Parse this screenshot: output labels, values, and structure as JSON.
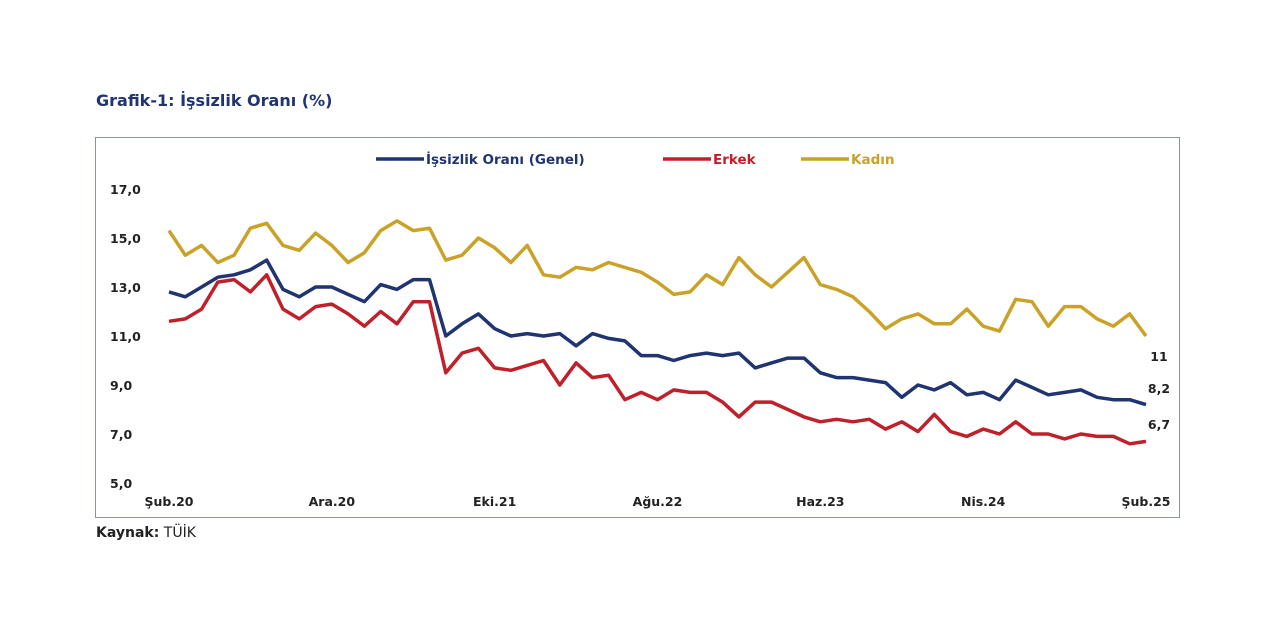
{
  "title": "Grafik-1: İşsizlik Oranı (%)",
  "source": {
    "label": "Kaynak:",
    "value": "TÜİK"
  },
  "chart_data": {
    "type": "line",
    "title": "Grafik-1: İşsizlik Oranı (%)",
    "xlabel": "",
    "ylabel": "",
    "ylim": [
      5.0,
      17.0
    ],
    "y_ticks": [
      "5,0",
      "7,0",
      "9,0",
      "11,0",
      "13,0",
      "15,0",
      "17,0"
    ],
    "y_tick_values": [
      5,
      7,
      9,
      11,
      13,
      15,
      17
    ],
    "x_tick_labels": [
      "Şub.20",
      "Ara.20",
      "Eki.21",
      "Ağu.22",
      "Haz.23",
      "Nis.24",
      "Şub.25"
    ],
    "x_tick_every_months": 10,
    "x_start": "Şub.20",
    "x_end": "Şub.25",
    "grid": false,
    "legend_position": "top",
    "series": [
      {
        "name": "İşsizlik Oranı (Genel)",
        "color": "#1F3470",
        "end_label": "8,2",
        "values": [
          12.8,
          12.6,
          13.0,
          13.4,
          13.5,
          13.7,
          14.1,
          12.9,
          12.6,
          13.0,
          13.0,
          12.7,
          12.4,
          13.1,
          12.9,
          13.3,
          13.3,
          11.0,
          11.5,
          11.9,
          11.3,
          11.0,
          11.1,
          11.0,
          11.1,
          10.6,
          11.1,
          10.9,
          10.8,
          10.2,
          10.2,
          10.0,
          10.2,
          10.3,
          10.2,
          10.3,
          9.7,
          9.9,
          10.1,
          10.1,
          9.5,
          9.3,
          9.3,
          9.2,
          9.1,
          8.5,
          9.0,
          8.8,
          9.1,
          8.6,
          8.7,
          8.4,
          9.2,
          8.9,
          8.6,
          8.7,
          8.8,
          8.5,
          8.4,
          8.4,
          8.2
        ]
      },
      {
        "name": "Erkek",
        "color": "#C0202A",
        "end_label": "6,7",
        "values": [
          11.6,
          11.7,
          12.1,
          13.2,
          13.3,
          12.8,
          13.5,
          12.1,
          11.7,
          12.2,
          12.3,
          11.9,
          11.4,
          12.0,
          11.5,
          12.4,
          12.4,
          9.5,
          10.3,
          10.5,
          9.7,
          9.6,
          9.8,
          10.0,
          9.0,
          9.9,
          9.3,
          9.4,
          8.4,
          8.7,
          8.4,
          8.8,
          8.7,
          8.7,
          8.3,
          7.7,
          8.3,
          8.3,
          8.0,
          7.7,
          7.5,
          7.6,
          7.5,
          7.6,
          7.2,
          7.5,
          7.1,
          7.8,
          7.1,
          6.9,
          7.2,
          7.0,
          7.5,
          7.0,
          7.0,
          6.8,
          7.0,
          6.9,
          6.9,
          6.6,
          6.7
        ]
      },
      {
        "name": "Kadın",
        "color": "#C9A227",
        "end_label": "11",
        "values": [
          15.3,
          14.3,
          14.7,
          14.0,
          14.3,
          15.4,
          15.6,
          14.7,
          14.5,
          15.2,
          14.7,
          14.0,
          14.4,
          15.3,
          15.7,
          15.3,
          15.4,
          14.1,
          14.3,
          15.0,
          14.6,
          14.0,
          14.7,
          13.5,
          13.4,
          13.8,
          13.7,
          14.0,
          13.8,
          13.6,
          13.2,
          12.7,
          12.8,
          13.5,
          13.1,
          14.2,
          13.5,
          13.0,
          13.6,
          14.2,
          13.1,
          12.9,
          12.6,
          12.0,
          11.3,
          11.7,
          11.9,
          11.5,
          11.5,
          12.1,
          11.4,
          11.2,
          12.5,
          12.4,
          11.4,
          12.2,
          12.2,
          11.7,
          11.4,
          11.9,
          11.0
        ]
      }
    ]
  }
}
